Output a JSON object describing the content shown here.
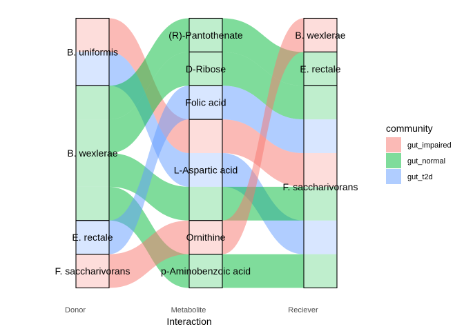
{
  "chart_data": {
    "type": "alluvial",
    "axes": [
      "Donor",
      "Metabolite",
      "Reciever"
    ],
    "xlabel": "Interaction",
    "legend": {
      "title": "community",
      "position": "right",
      "entries": [
        {
          "name": "gut_impaired",
          "color": "#F8766D"
        },
        {
          "name": "gut_normal",
          "color": "#00BA38"
        },
        {
          "name": "gut_t2d",
          "color": "#619CFF"
        }
      ]
    },
    "strata": {
      "Donor": [
        {
          "name": "B. uniformis",
          "value": 2
        },
        {
          "name": "B. wexlerae",
          "value": 4
        },
        {
          "name": "E. rectale",
          "value": 1
        },
        {
          "name": "F. saccharivorans",
          "value": 1
        }
      ],
      "Metabolite": [
        {
          "name": "(R)-Pantothenate",
          "value": 1
        },
        {
          "name": "D-Ribose",
          "value": 1
        },
        {
          "name": "Folic acid",
          "value": 1
        },
        {
          "name": "L-Aspartic acid",
          "value": 3
        },
        {
          "name": "Ornithine",
          "value": 1
        },
        {
          "name": "p-Aminobenzoic acid",
          "value": 1
        }
      ],
      "Reciever": [
        {
          "name": "B. wexlerae",
          "value": 1
        },
        {
          "name": "E. rectale",
          "value": 1
        },
        {
          "name": "F. saccharivorans",
          "value": 6
        }
      ]
    },
    "flows": [
      {
        "donor": "B. uniformis",
        "metabolite": "L-Aspartic acid",
        "reciever": "F. saccharivorans",
        "community": "gut_impaired"
      },
      {
        "donor": "B. uniformis",
        "metabolite": "L-Aspartic acid",
        "reciever": "F. saccharivorans",
        "community": "gut_t2d"
      },
      {
        "donor": "B. wexlerae",
        "metabolite": "(R)-Pantothenate",
        "reciever": "E. rectale",
        "community": "gut_normal"
      },
      {
        "donor": "B. wexlerae",
        "metabolite": "D-Ribose",
        "reciever": "F. saccharivorans",
        "community": "gut_normal"
      },
      {
        "donor": "B. wexlerae",
        "metabolite": "L-Aspartic acid",
        "reciever": "F. saccharivorans",
        "community": "gut_normal"
      },
      {
        "donor": "B. wexlerae",
        "metabolite": "p-Aminobenzoic acid",
        "reciever": "F. saccharivorans",
        "community": "gut_normal"
      },
      {
        "donor": "E. rectale",
        "metabolite": "Folic acid",
        "reciever": "F. saccharivorans",
        "community": "gut_t2d"
      },
      {
        "donor": "F. saccharivorans",
        "metabolite": "Ornithine",
        "reciever": "B. wexlerae",
        "community": "gut_impaired"
      }
    ],
    "grid": false
  }
}
